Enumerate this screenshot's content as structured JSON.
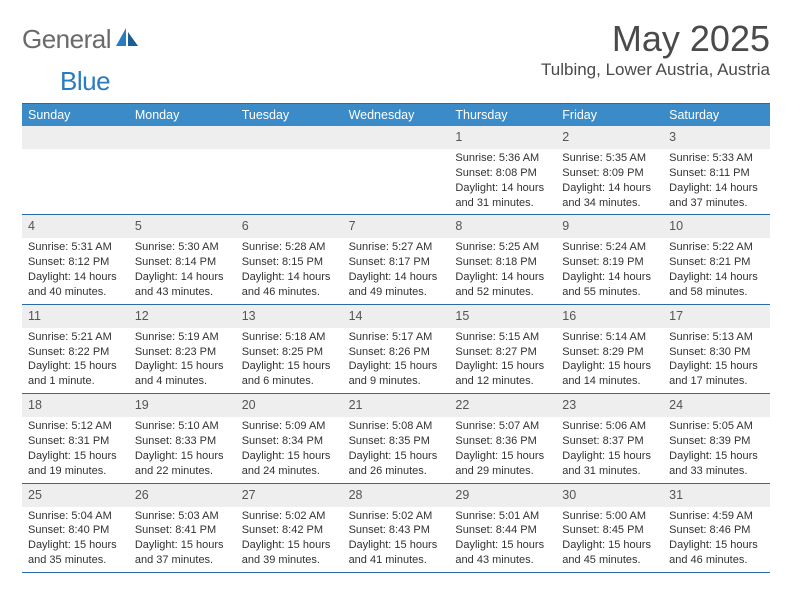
{
  "logo": {
    "text1": "General",
    "text2": "Blue"
  },
  "title": "May 2025",
  "location": "Tulbing, Lower Austria, Austria",
  "colors": {
    "header_bg": "#3b8bc9",
    "border": "#2a6aa8",
    "daynum_bg": "#eeeeee",
    "text": "#323232",
    "title_text": "#4a4a4a"
  },
  "daysOfWeek": [
    "Sunday",
    "Monday",
    "Tuesday",
    "Wednesday",
    "Thursday",
    "Friday",
    "Saturday"
  ],
  "weeks": [
    [
      {
        "empty": true
      },
      {
        "empty": true
      },
      {
        "empty": true
      },
      {
        "empty": true
      },
      {
        "n": "1",
        "sunrise": "5:36 AM",
        "sunset": "8:08 PM",
        "daylight": "14 hours and 31 minutes."
      },
      {
        "n": "2",
        "sunrise": "5:35 AM",
        "sunset": "8:09 PM",
        "daylight": "14 hours and 34 minutes."
      },
      {
        "n": "3",
        "sunrise": "5:33 AM",
        "sunset": "8:11 PM",
        "daylight": "14 hours and 37 minutes."
      }
    ],
    [
      {
        "n": "4",
        "sunrise": "5:31 AM",
        "sunset": "8:12 PM",
        "daylight": "14 hours and 40 minutes."
      },
      {
        "n": "5",
        "sunrise": "5:30 AM",
        "sunset": "8:14 PM",
        "daylight": "14 hours and 43 minutes."
      },
      {
        "n": "6",
        "sunrise": "5:28 AM",
        "sunset": "8:15 PM",
        "daylight": "14 hours and 46 minutes."
      },
      {
        "n": "7",
        "sunrise": "5:27 AM",
        "sunset": "8:17 PM",
        "daylight": "14 hours and 49 minutes."
      },
      {
        "n": "8",
        "sunrise": "5:25 AM",
        "sunset": "8:18 PM",
        "daylight": "14 hours and 52 minutes."
      },
      {
        "n": "9",
        "sunrise": "5:24 AM",
        "sunset": "8:19 PM",
        "daylight": "14 hours and 55 minutes."
      },
      {
        "n": "10",
        "sunrise": "5:22 AM",
        "sunset": "8:21 PM",
        "daylight": "14 hours and 58 minutes."
      }
    ],
    [
      {
        "n": "11",
        "sunrise": "5:21 AM",
        "sunset": "8:22 PM",
        "daylight": "15 hours and 1 minute."
      },
      {
        "n": "12",
        "sunrise": "5:19 AM",
        "sunset": "8:23 PM",
        "daylight": "15 hours and 4 minutes."
      },
      {
        "n": "13",
        "sunrise": "5:18 AM",
        "sunset": "8:25 PM",
        "daylight": "15 hours and 6 minutes."
      },
      {
        "n": "14",
        "sunrise": "5:17 AM",
        "sunset": "8:26 PM",
        "daylight": "15 hours and 9 minutes."
      },
      {
        "n": "15",
        "sunrise": "5:15 AM",
        "sunset": "8:27 PM",
        "daylight": "15 hours and 12 minutes."
      },
      {
        "n": "16",
        "sunrise": "5:14 AM",
        "sunset": "8:29 PM",
        "daylight": "15 hours and 14 minutes."
      },
      {
        "n": "17",
        "sunrise": "5:13 AM",
        "sunset": "8:30 PM",
        "daylight": "15 hours and 17 minutes."
      }
    ],
    [
      {
        "n": "18",
        "sunrise": "5:12 AM",
        "sunset": "8:31 PM",
        "daylight": "15 hours and 19 minutes."
      },
      {
        "n": "19",
        "sunrise": "5:10 AM",
        "sunset": "8:33 PM",
        "daylight": "15 hours and 22 minutes."
      },
      {
        "n": "20",
        "sunrise": "5:09 AM",
        "sunset": "8:34 PM",
        "daylight": "15 hours and 24 minutes."
      },
      {
        "n": "21",
        "sunrise": "5:08 AM",
        "sunset": "8:35 PM",
        "daylight": "15 hours and 26 minutes."
      },
      {
        "n": "22",
        "sunrise": "5:07 AM",
        "sunset": "8:36 PM",
        "daylight": "15 hours and 29 minutes."
      },
      {
        "n": "23",
        "sunrise": "5:06 AM",
        "sunset": "8:37 PM",
        "daylight": "15 hours and 31 minutes."
      },
      {
        "n": "24",
        "sunrise": "5:05 AM",
        "sunset": "8:39 PM",
        "daylight": "15 hours and 33 minutes."
      }
    ],
    [
      {
        "n": "25",
        "sunrise": "5:04 AM",
        "sunset": "8:40 PM",
        "daylight": "15 hours and 35 minutes."
      },
      {
        "n": "26",
        "sunrise": "5:03 AM",
        "sunset": "8:41 PM",
        "daylight": "15 hours and 37 minutes."
      },
      {
        "n": "27",
        "sunrise": "5:02 AM",
        "sunset": "8:42 PM",
        "daylight": "15 hours and 39 minutes."
      },
      {
        "n": "28",
        "sunrise": "5:02 AM",
        "sunset": "8:43 PM",
        "daylight": "15 hours and 41 minutes."
      },
      {
        "n": "29",
        "sunrise": "5:01 AM",
        "sunset": "8:44 PM",
        "daylight": "15 hours and 43 minutes."
      },
      {
        "n": "30",
        "sunrise": "5:00 AM",
        "sunset": "8:45 PM",
        "daylight": "15 hours and 45 minutes."
      },
      {
        "n": "31",
        "sunrise": "4:59 AM",
        "sunset": "8:46 PM",
        "daylight": "15 hours and 46 minutes."
      }
    ]
  ],
  "labels": {
    "sunrise": "Sunrise: ",
    "sunset": "Sunset: ",
    "daylight": "Daylight: "
  }
}
